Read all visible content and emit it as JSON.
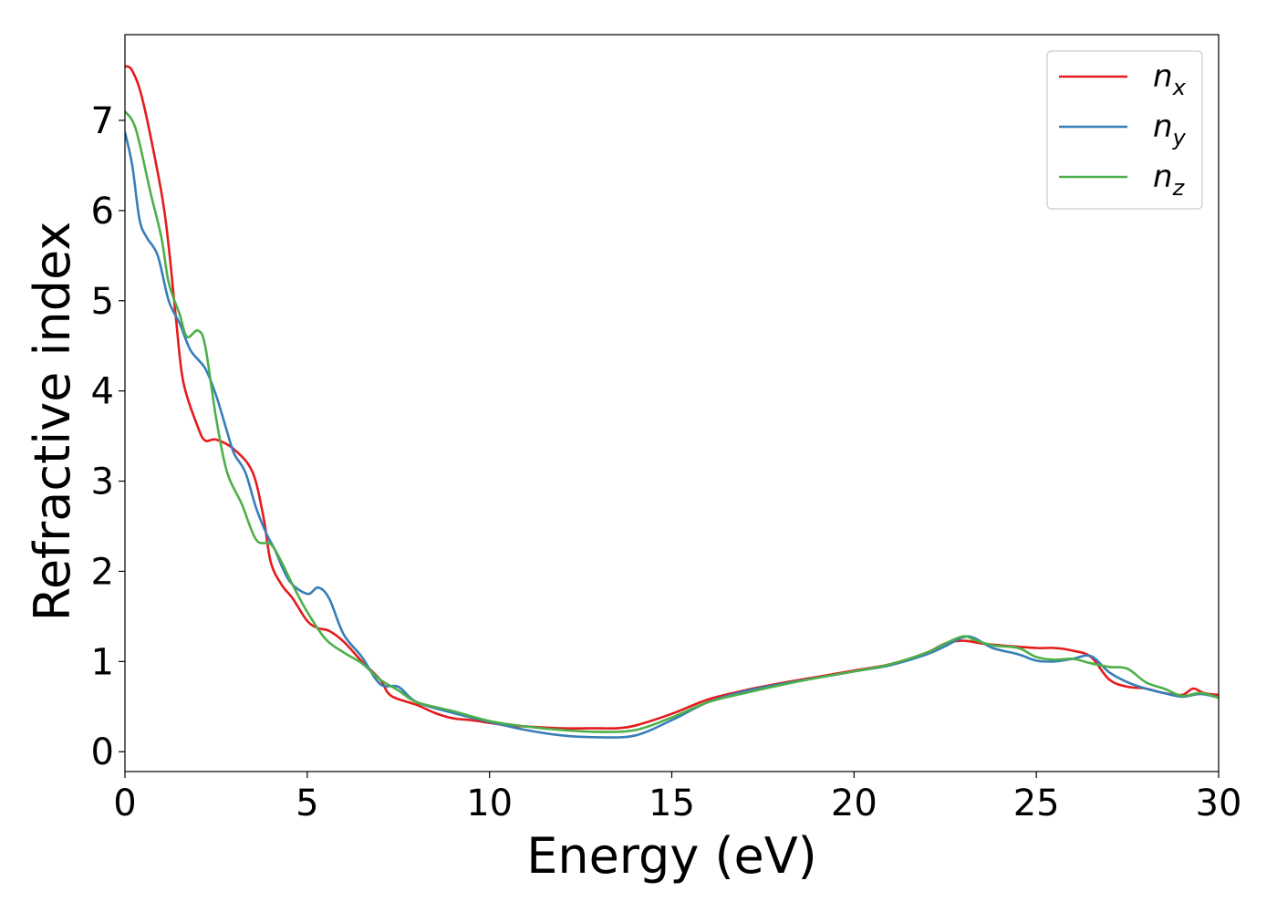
{
  "chart_data": {
    "type": "line",
    "title": "",
    "xlabel": "Energy (eV)",
    "ylabel": "Refractive index",
    "xlim": [
      0,
      30
    ],
    "ylim": [
      -0.22,
      7.95
    ],
    "xticks": [
      0,
      5,
      10,
      15,
      20,
      25,
      30
    ],
    "yticks": [
      0,
      1,
      2,
      3,
      4,
      5,
      6,
      7
    ],
    "grid": false,
    "legend_position": "top-right",
    "series": [
      {
        "name": "n",
        "subscript": "x",
        "color": "#e41a1c",
        "points": [
          [
            0,
            7.6
          ],
          [
            0.2,
            7.55
          ],
          [
            0.5,
            7.2
          ],
          [
            1.0,
            6.2
          ],
          [
            1.2,
            5.6
          ],
          [
            1.4,
            4.8
          ],
          [
            1.6,
            4.1
          ],
          [
            2.0,
            3.6
          ],
          [
            2.2,
            3.45
          ],
          [
            2.5,
            3.46
          ],
          [
            3.0,
            3.35
          ],
          [
            3.5,
            3.1
          ],
          [
            3.8,
            2.6
          ],
          [
            4.0,
            2.1
          ],
          [
            4.3,
            1.85
          ],
          [
            4.6,
            1.7
          ],
          [
            5.0,
            1.45
          ],
          [
            5.3,
            1.37
          ],
          [
            5.6,
            1.34
          ],
          [
            6.0,
            1.22
          ],
          [
            6.5,
            1.0
          ],
          [
            7.0,
            0.8
          ],
          [
            7.3,
            0.62
          ],
          [
            8.0,
            0.52
          ],
          [
            8.5,
            0.43
          ],
          [
            9.0,
            0.37
          ],
          [
            9.5,
            0.35
          ],
          [
            10.0,
            0.32
          ],
          [
            10.5,
            0.29
          ],
          [
            11.0,
            0.28
          ],
          [
            12.0,
            0.26
          ],
          [
            13.0,
            0.26
          ],
          [
            13.5,
            0.26
          ],
          [
            14.0,
            0.29
          ],
          [
            15.0,
            0.42
          ],
          [
            16.0,
            0.58
          ],
          [
            17.0,
            0.68
          ],
          [
            18.0,
            0.76
          ],
          [
            19.0,
            0.83
          ],
          [
            20.0,
            0.9
          ],
          [
            21.0,
            0.97
          ],
          [
            22.0,
            1.1
          ],
          [
            22.5,
            1.2
          ],
          [
            23.0,
            1.23
          ],
          [
            23.5,
            1.2
          ],
          [
            24.0,
            1.18
          ],
          [
            25.0,
            1.15
          ],
          [
            25.5,
            1.15
          ],
          [
            26.0,
            1.12
          ],
          [
            26.5,
            1.05
          ],
          [
            27.0,
            0.8
          ],
          [
            27.5,
            0.72
          ],
          [
            28.0,
            0.7
          ],
          [
            28.5,
            0.65
          ],
          [
            29.0,
            0.63
          ],
          [
            29.3,
            0.7
          ],
          [
            29.6,
            0.65
          ],
          [
            30.0,
            0.63
          ]
        ]
      },
      {
        "name": "n",
        "subscript": "y",
        "color": "#377eb8",
        "points": [
          [
            0,
            6.87
          ],
          [
            0.2,
            6.5
          ],
          [
            0.4,
            5.9
          ],
          [
            0.6,
            5.7
          ],
          [
            0.9,
            5.5
          ],
          [
            1.2,
            5.0
          ],
          [
            1.5,
            4.75
          ],
          [
            1.8,
            4.45
          ],
          [
            2.2,
            4.25
          ],
          [
            2.5,
            3.95
          ],
          [
            2.8,
            3.55
          ],
          [
            3.0,
            3.3
          ],
          [
            3.3,
            3.1
          ],
          [
            3.6,
            2.7
          ],
          [
            3.9,
            2.4
          ],
          [
            4.1,
            2.25
          ],
          [
            4.5,
            1.9
          ],
          [
            5.0,
            1.75
          ],
          [
            5.3,
            1.82
          ],
          [
            5.6,
            1.7
          ],
          [
            6.0,
            1.3
          ],
          [
            6.5,
            1.05
          ],
          [
            7.0,
            0.75
          ],
          [
            7.5,
            0.72
          ],
          [
            8.0,
            0.55
          ],
          [
            9.0,
            0.43
          ],
          [
            10.0,
            0.33
          ],
          [
            11.0,
            0.24
          ],
          [
            12.0,
            0.18
          ],
          [
            13.0,
            0.16
          ],
          [
            14.0,
            0.18
          ],
          [
            15.0,
            0.35
          ],
          [
            16.0,
            0.55
          ],
          [
            17.0,
            0.67
          ],
          [
            18.0,
            0.75
          ],
          [
            19.0,
            0.82
          ],
          [
            20.0,
            0.89
          ],
          [
            21.0,
            0.96
          ],
          [
            22.0,
            1.08
          ],
          [
            22.5,
            1.17
          ],
          [
            23.0,
            1.27
          ],
          [
            23.3,
            1.26
          ],
          [
            23.8,
            1.15
          ],
          [
            24.5,
            1.08
          ],
          [
            25.0,
            1.01
          ],
          [
            25.5,
            1.0
          ],
          [
            26.0,
            1.03
          ],
          [
            26.5,
            1.06
          ],
          [
            27.0,
            0.88
          ],
          [
            27.5,
            0.77
          ],
          [
            28.0,
            0.7
          ],
          [
            28.5,
            0.65
          ],
          [
            29.0,
            0.61
          ],
          [
            29.5,
            0.64
          ],
          [
            30.0,
            0.6
          ]
        ]
      },
      {
        "name": "n",
        "subscript": "z",
        "color": "#4daf4a",
        "points": [
          [
            0,
            7.1
          ],
          [
            0.3,
            6.9
          ],
          [
            0.7,
            6.2
          ],
          [
            1.0,
            5.7
          ],
          [
            1.2,
            5.2
          ],
          [
            1.5,
            4.85
          ],
          [
            1.7,
            4.6
          ],
          [
            2.0,
            4.67
          ],
          [
            2.2,
            4.5
          ],
          [
            2.5,
            3.7
          ],
          [
            2.8,
            3.1
          ],
          [
            3.2,
            2.75
          ],
          [
            3.6,
            2.35
          ],
          [
            4.0,
            2.3
          ],
          [
            4.3,
            2.1
          ],
          [
            4.6,
            1.85
          ],
          [
            5.0,
            1.55
          ],
          [
            5.5,
            1.25
          ],
          [
            6.0,
            1.1
          ],
          [
            6.5,
            0.98
          ],
          [
            7.0,
            0.8
          ],
          [
            7.5,
            0.68
          ],
          [
            8.0,
            0.55
          ],
          [
            9.0,
            0.45
          ],
          [
            10.0,
            0.34
          ],
          [
            11.0,
            0.28
          ],
          [
            12.0,
            0.24
          ],
          [
            13.0,
            0.22
          ],
          [
            14.0,
            0.24
          ],
          [
            15.0,
            0.38
          ],
          [
            16.0,
            0.55
          ],
          [
            17.0,
            0.65
          ],
          [
            18.0,
            0.74
          ],
          [
            19.0,
            0.82
          ],
          [
            20.0,
            0.89
          ],
          [
            21.0,
            0.97
          ],
          [
            22.0,
            1.1
          ],
          [
            22.5,
            1.2
          ],
          [
            23.0,
            1.28
          ],
          [
            23.3,
            1.24
          ],
          [
            23.8,
            1.18
          ],
          [
            24.5,
            1.15
          ],
          [
            25.0,
            1.05
          ],
          [
            25.5,
            1.02
          ],
          [
            26.0,
            1.03
          ],
          [
            26.5,
            0.98
          ],
          [
            27.0,
            0.94
          ],
          [
            27.5,
            0.92
          ],
          [
            28.0,
            0.77
          ],
          [
            28.5,
            0.7
          ],
          [
            29.0,
            0.62
          ],
          [
            29.5,
            0.65
          ],
          [
            30.0,
            0.6
          ]
        ]
      }
    ]
  }
}
